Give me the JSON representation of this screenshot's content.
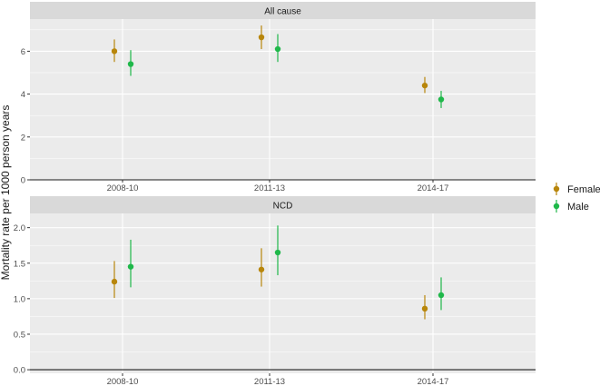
{
  "ylabel": "Mortality rate per 1000 person years",
  "colors": {
    "Female": "#b8860b",
    "Male": "#1fb84a",
    "panel_bg": "#ebebeb",
    "strip_bg": "#d9d9d9",
    "grid": "#ffffff"
  },
  "legend": {
    "position": "right",
    "items": [
      {
        "label": "Female",
        "color": "#b8860b"
      },
      {
        "label": "Male",
        "color": "#1fb84a"
      }
    ]
  },
  "chart_data": [
    {
      "type": "scatter",
      "title": "All cause",
      "categories": [
        "2008-10",
        "2011-13",
        "2014-17"
      ],
      "ylim": [
        0,
        7.5
      ],
      "yticks": [
        0,
        2,
        4,
        6
      ],
      "ytick_labels": [
        "0",
        "2",
        "4",
        "6"
      ],
      "grid": true,
      "series": [
        {
          "name": "Female",
          "values": [
            6.0,
            6.65,
            4.4
          ],
          "lower": [
            5.5,
            6.1,
            4.05
          ],
          "upper": [
            6.55,
            7.2,
            4.8
          ]
        },
        {
          "name": "Male",
          "values": [
            5.4,
            6.1,
            3.75
          ],
          "lower": [
            4.85,
            5.5,
            3.35
          ],
          "upper": [
            6.05,
            6.8,
            4.15
          ]
        }
      ]
    },
    {
      "type": "scatter",
      "title": "NCD",
      "categories": [
        "2008-10",
        "2011-13",
        "2014-17"
      ],
      "ylim": [
        -0.05,
        2.2
      ],
      "yticks": [
        0,
        0.5,
        1.0,
        1.5,
        2.0
      ],
      "ytick_labels": [
        "0.0",
        "0.5",
        "1.0",
        "1.5",
        "2.0"
      ],
      "grid": true,
      "series": [
        {
          "name": "Female",
          "values": [
            1.24,
            1.41,
            0.86
          ],
          "lower": [
            1.01,
            1.17,
            0.71
          ],
          "upper": [
            1.53,
            1.71,
            1.05
          ]
        },
        {
          "name": "Male",
          "values": [
            1.45,
            1.65,
            1.05
          ],
          "lower": [
            1.16,
            1.33,
            0.84
          ],
          "upper": [
            1.83,
            2.03,
            1.3
          ]
        }
      ]
    }
  ]
}
